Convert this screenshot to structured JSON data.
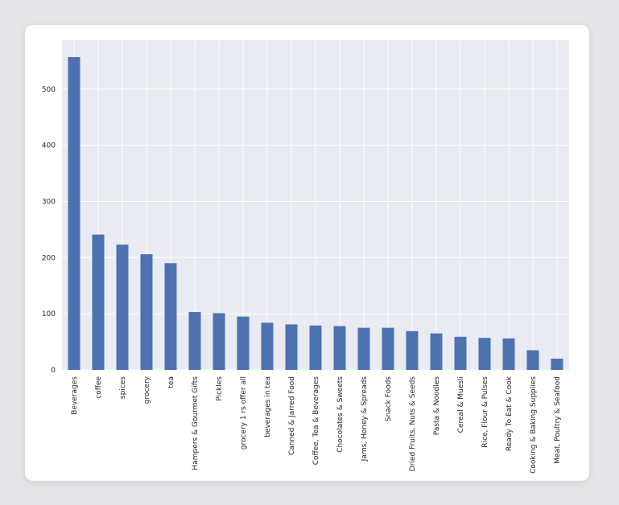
{
  "chart_data": {
    "type": "bar",
    "title": "",
    "xlabel": "",
    "ylabel": "",
    "grid": true,
    "color": "#4c72b0",
    "ylim": [
      0,
      587
    ],
    "yticks": [
      0,
      100,
      200,
      300,
      400,
      500
    ],
    "categories": [
      "Beverages",
      "coffee",
      "spices",
      "grocery",
      "tea",
      "Hampers & Gourmet Gifts",
      "Pickles",
      "grocery 1 rs offer all",
      "beverages in tea",
      "Canned & Jarred Food",
      "Coffee, Tea & Beverages",
      "Chocolates & Sweets",
      "Jams, Honey & Spreads",
      "Snack Foods",
      "Dried Fruits, Nuts & Seeds",
      "Pasta & Noodles",
      "Cereal & Muesli",
      "Rice, Flour & Pulses",
      "Ready To Eat & Cook",
      "Cooking & Baking Supplies",
      "Meat, Poultry & Seafood"
    ],
    "values": [
      557,
      241,
      223,
      206,
      190,
      103,
      101,
      95,
      84,
      81,
      79,
      78,
      75,
      75,
      69,
      65,
      59,
      57,
      56,
      35,
      20
    ]
  }
}
